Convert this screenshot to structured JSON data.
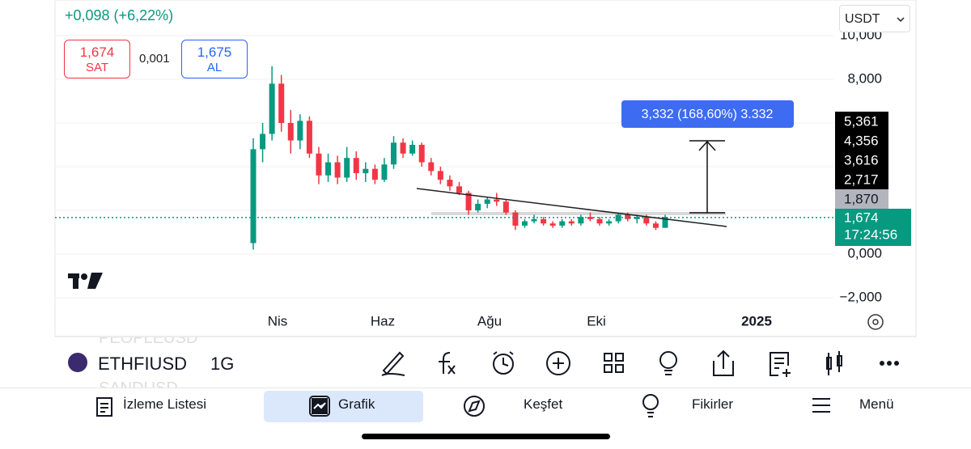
{
  "header": {
    "change": "+0,098 (+6,22%)",
    "sell_price": "1,674",
    "sell_label": "SAT",
    "spread": "0,001",
    "buy_price": "1,675",
    "buy_label": "AL",
    "currency": "USDT"
  },
  "chart_data": {
    "type": "candlestick",
    "open": [
      0.5,
      4.8,
      5.5,
      7.8,
      6.0,
      5.2,
      6.1,
      4.6,
      3.6,
      4.2,
      3.5,
      4.4,
      3.7,
      3.9,
      3.4,
      4.1,
      5.1,
      4.6,
      5.0,
      4.2,
      3.8,
      3.4,
      3.1,
      2.8,
      2.0,
      2.3,
      2.5,
      2.4,
      1.9,
      1.3,
      1.5,
      1.6,
      1.4,
      1.3,
      1.5,
      1.4,
      1.7,
      1.6,
      1.4,
      1.5,
      1.8,
      1.6,
      1.7,
      1.4,
      1.2
    ],
    "high": [
      5.3,
      6.0,
      8.6,
      8.2,
      6.6,
      6.4,
      6.3,
      4.9,
      4.6,
      4.5,
      4.9,
      4.7,
      4.2,
      4.1,
      4.4,
      5.4,
      5.3,
      5.2,
      5.1,
      4.4,
      4.0,
      3.6,
      3.3,
      2.9,
      2.5,
      2.6,
      2.8,
      2.5,
      2.0,
      1.6,
      1.8,
      1.7,
      1.5,
      1.6,
      1.6,
      1.8,
      1.9,
      1.7,
      1.6,
      1.9,
      1.9,
      1.8,
      1.8,
      1.5,
      1.8
    ],
    "low": [
      0.2,
      4.2,
      5.2,
      5.6,
      4.6,
      4.8,
      4.4,
      3.2,
      3.3,
      3.2,
      3.3,
      3.4,
      3.3,
      3.2,
      3.3,
      3.9,
      4.4,
      4.5,
      4.0,
      3.6,
      3.2,
      2.9,
      2.7,
      1.8,
      1.9,
      2.1,
      2.2,
      1.8,
      1.1,
      1.2,
      1.4,
      1.3,
      1.2,
      1.2,
      1.3,
      1.3,
      1.5,
      1.3,
      1.3,
      1.4,
      1.5,
      1.4,
      1.3,
      1.1,
      1.2
    ],
    "close": [
      4.8,
      5.5,
      7.8,
      6.0,
      5.2,
      6.1,
      4.6,
      3.6,
      4.2,
      3.5,
      4.4,
      3.7,
      3.9,
      3.4,
      4.1,
      5.1,
      4.6,
      5.0,
      4.2,
      3.8,
      3.4,
      3.1,
      2.8,
      2.0,
      2.3,
      2.5,
      2.4,
      1.9,
      1.3,
      1.5,
      1.6,
      1.4,
      1.3,
      1.5,
      1.4,
      1.7,
      1.6,
      1.4,
      1.5,
      1.8,
      1.6,
      1.7,
      1.4,
      1.2,
      1.7
    ],
    "up_color": "#089981",
    "down_color": "#f23645",
    "ylim": [
      -3.74,
      11.63
    ],
    "yticks": [
      {
        "value": 10,
        "label": "10,000"
      },
      {
        "value": 8,
        "label": "8,000"
      },
      {
        "value": 6,
        "label": "6,000"
      },
      {
        "value": 4,
        "label": "4,000"
      },
      {
        "value": 2,
        "label": "2,000"
      },
      {
        "value": 0,
        "label": "0,000"
      },
      {
        "value": -2,
        "label": "−2,000"
      }
    ],
    "categories": [
      "Nis",
      "Haz",
      "Ağu",
      "Eki",
      "2025"
    ],
    "current_price": {
      "value": 1.674,
      "label": "1,674",
      "countdown": "17:24:56"
    },
    "price_labels": [
      {
        "value": 5.361,
        "label": "5,361"
      },
      {
        "value": 4.356,
        "label": "4,356"
      },
      {
        "value": 3.616,
        "label": "3,616"
      },
      {
        "value": 2.717,
        "label": "2,717"
      },
      {
        "value": 1.87,
        "label": "1,870"
      }
    ],
    "measure_label": "3,332 (168,60%) 3.332"
  },
  "toolbar": {
    "symbol": "ETHFIUSD",
    "interval": "1G",
    "faded_above": "PEOPLEUSD",
    "faded_below": "SANDUSD"
  },
  "nav": [
    "İzleme Listesi",
    "Grafik",
    "Keşfet",
    "Fikirler",
    "Menü"
  ]
}
